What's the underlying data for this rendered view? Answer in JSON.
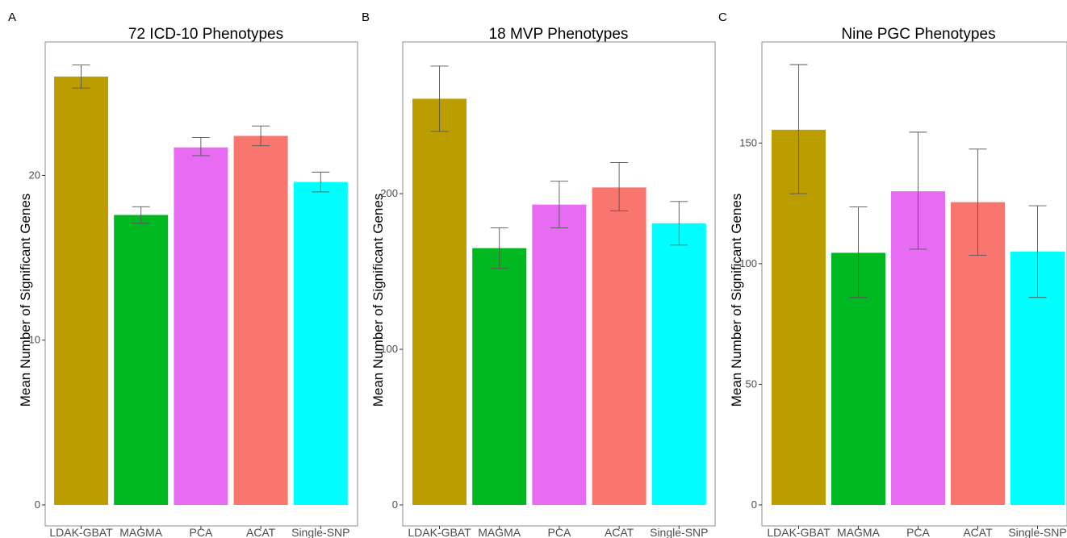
{
  "chart_data": [
    {
      "type": "bar",
      "panel": "A",
      "title": "72 ICD-10 Phenotypes",
      "ylabel": "Mean Number of Significant Genes",
      "xlabel": "",
      "categories": [
        "LDAK-GBAT",
        "MAGMA",
        "PCA",
        "ACAT",
        "Single-SNP"
      ],
      "values": [
        26.0,
        17.6,
        21.7,
        22.4,
        19.6
      ],
      "error_low": [
        25.3,
        17.1,
        21.2,
        21.8,
        19.0
      ],
      "error_high": [
        26.7,
        18.1,
        22.3,
        23.0,
        20.2
      ],
      "yticks": [
        "0",
        "10",
        "20"
      ],
      "ylim": [
        0,
        28
      ],
      "grid": false,
      "colors": [
        "#bb9d00",
        "#00b81f",
        "#e76bf3",
        "#f8766d",
        "#00ffff"
      ]
    },
    {
      "type": "bar",
      "panel": "B",
      "title": "18 MVP Phenotypes",
      "ylabel": "Mean Number of Significant Genes",
      "xlabel": "",
      "categories": [
        "LDAK-GBAT",
        "MAGMA",
        "PCA",
        "ACAT",
        "Single-SNP"
      ],
      "values": [
        261,
        165,
        193,
        204,
        181
      ],
      "error_low": [
        240,
        152,
        178,
        189,
        167
      ],
      "error_high": [
        282,
        178,
        208,
        220,
        195
      ],
      "yticks": [
        "0",
        "100",
        "200"
      ],
      "ylim": [
        0,
        296
      ],
      "grid": false,
      "colors": [
        "#bb9d00",
        "#00b81f",
        "#e76bf3",
        "#f8766d",
        "#00ffff"
      ]
    },
    {
      "type": "bar",
      "panel": "C",
      "title": "Nine PGC Phenotypes",
      "ylabel": "Mean Number of Significant Genes",
      "xlabel": "",
      "categories": [
        "LDAK-GBAT",
        "MAGMA",
        "PCA",
        "ACAT",
        "Single-SNP"
      ],
      "values": [
        155.5,
        104.5,
        130,
        125.5,
        105
      ],
      "error_low": [
        129,
        86,
        106,
        103.5,
        86
      ],
      "error_high": [
        182.5,
        123.5,
        154.5,
        147.5,
        124
      ],
      "yticks": [
        "0",
        "50",
        "100",
        "150"
      ],
      "ylim": [
        0,
        192
      ],
      "grid": false,
      "colors": [
        "#bb9d00",
        "#00b81f",
        "#e76bf3",
        "#f8766d",
        "#00ffff"
      ]
    }
  ]
}
